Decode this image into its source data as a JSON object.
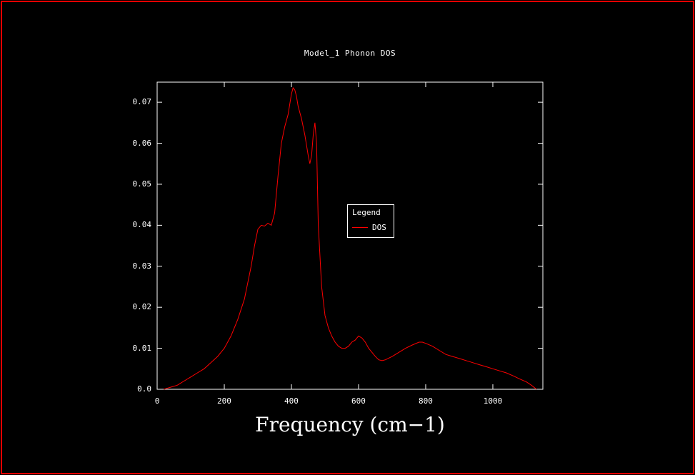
{
  "window": {
    "background": "#000000",
    "border_color": "#ff0000",
    "text_color": "#ffffff"
  },
  "chart": {
    "title": "Model_1 Phonon DOS",
    "xlabel": "Frequency (cm−1)",
    "legend": {
      "title": "Legend",
      "entries": [
        {
          "label": "DOS",
          "color": "#ff0000"
        }
      ]
    }
  },
  "chart_data": {
    "type": "line",
    "title": "Model_1 Phonon DOS",
    "xlabel": "Frequency (cm-1)",
    "ylabel": "",
    "xlim": [
      0,
      1149
    ],
    "ylim": [
      0,
      0.0749
    ],
    "x_ticks": [
      0,
      200,
      400,
      600,
      800,
      1000
    ],
    "y_ticks": [
      0,
      0.01,
      0.02,
      0.03,
      0.04,
      0.05,
      0.06,
      0.07
    ],
    "y_tick_labels": [
      "0.0",
      "0.01",
      "0.02",
      "0.03",
      "0.04",
      "0.05",
      "0.06",
      "0.07"
    ],
    "grid": false,
    "legend_position": "inside-center-right",
    "series": [
      {
        "name": "DOS",
        "color": "#ff0000",
        "x": [
          20,
          40,
          60,
          80,
          100,
          120,
          140,
          160,
          180,
          200,
          220,
          240,
          260,
          280,
          290,
          300,
          310,
          320,
          330,
          340,
          350,
          360,
          370,
          380,
          390,
          400,
          405,
          410,
          415,
          420,
          430,
          440,
          450,
          455,
          460,
          465,
          470,
          475,
          480,
          490,
          500,
          510,
          520,
          530,
          540,
          550,
          560,
          570,
          580,
          590,
          600,
          610,
          620,
          630,
          640,
          650,
          660,
          670,
          680,
          700,
          720,
          740,
          760,
          780,
          790,
          800,
          820,
          840,
          860,
          880,
          900,
          920,
          940,
          960,
          980,
          1000,
          1020,
          1040,
          1060,
          1080,
          1100,
          1115,
          1130
        ],
        "y": [
          0.0,
          0.0005,
          0.001,
          0.002,
          0.003,
          0.004,
          0.005,
          0.0065,
          0.008,
          0.01,
          0.013,
          0.017,
          0.022,
          0.03,
          0.035,
          0.039,
          0.04,
          0.0398,
          0.0405,
          0.04,
          0.043,
          0.052,
          0.06,
          0.064,
          0.067,
          0.072,
          0.0735,
          0.073,
          0.0715,
          0.069,
          0.066,
          0.062,
          0.057,
          0.055,
          0.057,
          0.062,
          0.065,
          0.06,
          0.04,
          0.025,
          0.018,
          0.015,
          0.013,
          0.0115,
          0.0105,
          0.01,
          0.01,
          0.0105,
          0.0115,
          0.012,
          0.013,
          0.0125,
          0.0115,
          0.01,
          0.009,
          0.008,
          0.0072,
          0.007,
          0.0072,
          0.008,
          0.009,
          0.01,
          0.0108,
          0.0115,
          0.0115,
          0.0112,
          0.0105,
          0.0095,
          0.0085,
          0.008,
          0.0075,
          0.007,
          0.0065,
          0.006,
          0.0055,
          0.005,
          0.0045,
          0.004,
          0.0033,
          0.0025,
          0.0018,
          0.001,
          0.0
        ]
      }
    ]
  }
}
